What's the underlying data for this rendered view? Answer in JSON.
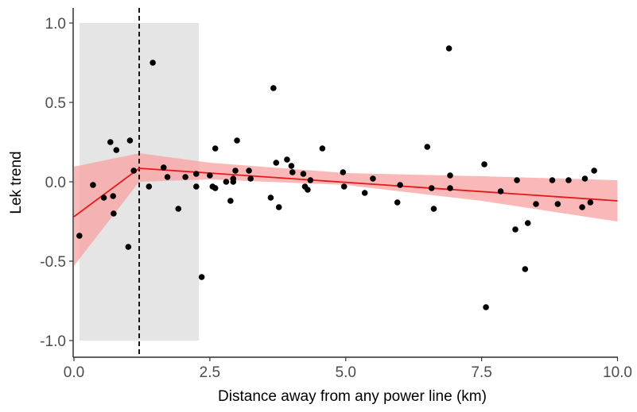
{
  "chart_data": {
    "type": "scatter",
    "title": "",
    "xlabel": "Distance away from any power line (km)",
    "ylabel": "Lek trend",
    "xlim": [
      0,
      10
    ],
    "ylim": [
      -1.1,
      1.1
    ],
    "x_ticks": [
      0,
      2.5,
      5,
      7.5,
      10
    ],
    "x_tick_labels": [
      "0.0",
      "2.5",
      "5.0",
      "7.5",
      "10.0"
    ],
    "y_ticks": [
      -1,
      -0.5,
      0,
      0.5,
      1
    ],
    "y_tick_labels": [
      "-1.0",
      "-0.5",
      "0.0",
      "0.5",
      "1.0"
    ],
    "grid": false,
    "shaded_region": {
      "x": [
        0.1,
        2.3
      ],
      "y": [
        -1.0,
        1.0
      ],
      "color": "#e5e5e5"
    },
    "breakpoint_line": {
      "x": 1.2,
      "style": "dashed",
      "color": "#000000"
    },
    "fit_line": {
      "color": "#e31a1c",
      "points": [
        {
          "x": 0.0,
          "y": -0.22
        },
        {
          "x": 1.2,
          "y": 0.085
        },
        {
          "x": 10.0,
          "y": -0.12
        }
      ]
    },
    "confidence_band": {
      "color": "#f8a0a0",
      "points": [
        {
          "x": 0.0,
          "lower": -0.53,
          "upper": 0.095
        },
        {
          "x": 1.2,
          "lower": 0.0,
          "upper": 0.18
        },
        {
          "x": 2.5,
          "lower": 0.015,
          "upper": 0.12
        },
        {
          "x": 5.0,
          "lower": -0.02,
          "upper": 0.055
        },
        {
          "x": 7.5,
          "lower": -0.12,
          "upper": 0.035
        },
        {
          "x": 10.0,
          "lower": -0.25,
          "upper": 0.01
        }
      ]
    },
    "point_color": "#000000",
    "points": [
      {
        "x": 0.1,
        "y": -0.34
      },
      {
        "x": 0.35,
        "y": -0.02
      },
      {
        "x": 0.55,
        "y": -0.1
      },
      {
        "x": 0.67,
        "y": 0.25
      },
      {
        "x": 0.72,
        "y": -0.09
      },
      {
        "x": 0.73,
        "y": -0.2
      },
      {
        "x": 0.78,
        "y": 0.2
      },
      {
        "x": 1.0,
        "y": -0.41
      },
      {
        "x": 1.03,
        "y": 0.26
      },
      {
        "x": 1.1,
        "y": 0.07
      },
      {
        "x": 1.38,
        "y": -0.03
      },
      {
        "x": 1.45,
        "y": 0.75
      },
      {
        "x": 1.65,
        "y": 0.09
      },
      {
        "x": 1.72,
        "y": 0.03
      },
      {
        "x": 1.92,
        "y": -0.17
      },
      {
        "x": 2.05,
        "y": 0.03
      },
      {
        "x": 2.25,
        "y": 0.05
      },
      {
        "x": 2.25,
        "y": -0.03
      },
      {
        "x": 2.35,
        "y": -0.6
      },
      {
        "x": 2.5,
        "y": 0.04
      },
      {
        "x": 2.55,
        "y": -0.03
      },
      {
        "x": 2.6,
        "y": 0.21
      },
      {
        "x": 2.6,
        "y": -0.04
      },
      {
        "x": 2.8,
        "y": 0.0
      },
      {
        "x": 2.88,
        "y": -0.12
      },
      {
        "x": 2.93,
        "y": 0.02
      },
      {
        "x": 2.93,
        "y": 0.0
      },
      {
        "x": 2.97,
        "y": 0.07
      },
      {
        "x": 3.0,
        "y": 0.26
      },
      {
        "x": 3.22,
        "y": 0.07
      },
      {
        "x": 3.25,
        "y": 0.02
      },
      {
        "x": 3.62,
        "y": -0.1
      },
      {
        "x": 3.67,
        "y": 0.59
      },
      {
        "x": 3.72,
        "y": 0.12
      },
      {
        "x": 3.77,
        "y": -0.16
      },
      {
        "x": 3.92,
        "y": 0.14
      },
      {
        "x": 4.0,
        "y": 0.1
      },
      {
        "x": 4.02,
        "y": 0.06
      },
      {
        "x": 4.22,
        "y": 0.05
      },
      {
        "x": 4.25,
        "y": -0.03
      },
      {
        "x": 4.3,
        "y": -0.05
      },
      {
        "x": 4.35,
        "y": 0.01
      },
      {
        "x": 4.57,
        "y": 0.21
      },
      {
        "x": 4.95,
        "y": 0.06
      },
      {
        "x": 4.97,
        "y": -0.03
      },
      {
        "x": 5.35,
        "y": -0.07
      },
      {
        "x": 5.5,
        "y": 0.02
      },
      {
        "x": 5.95,
        "y": -0.13
      },
      {
        "x": 6.0,
        "y": -0.02
      },
      {
        "x": 6.5,
        "y": 0.22
      },
      {
        "x": 6.58,
        "y": -0.04
      },
      {
        "x": 6.62,
        "y": -0.17
      },
      {
        "x": 6.9,
        "y": 0.84
      },
      {
        "x": 6.92,
        "y": 0.04
      },
      {
        "x": 6.92,
        "y": -0.04
      },
      {
        "x": 7.55,
        "y": 0.11
      },
      {
        "x": 7.58,
        "y": -0.79
      },
      {
        "x": 7.85,
        "y": -0.06
      },
      {
        "x": 8.12,
        "y": -0.3
      },
      {
        "x": 8.15,
        "y": 0.01
      },
      {
        "x": 8.3,
        "y": -0.55
      },
      {
        "x": 8.35,
        "y": -0.26
      },
      {
        "x": 8.5,
        "y": -0.14
      },
      {
        "x": 8.8,
        "y": 0.01
      },
      {
        "x": 8.9,
        "y": -0.14
      },
      {
        "x": 9.1,
        "y": 0.01
      },
      {
        "x": 9.35,
        "y": -0.16
      },
      {
        "x": 9.4,
        "y": 0.02
      },
      {
        "x": 9.5,
        "y": -0.13
      },
      {
        "x": 9.57,
        "y": 0.07
      }
    ]
  }
}
